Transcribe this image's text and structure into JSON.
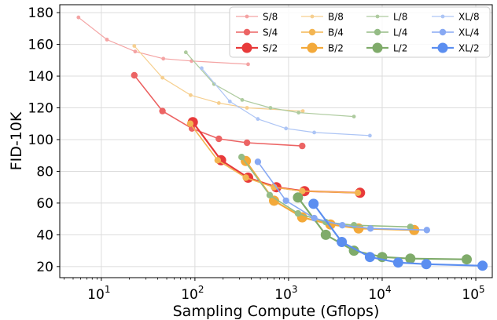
{
  "chart_data": {
    "type": "line",
    "xlabel": "Sampling Compute (Gflops)",
    "ylabel": "FID-10K",
    "xscale": "log",
    "xlim": [
      3.6,
      150000
    ],
    "ylim": [
      13,
      185
    ],
    "xticks": [
      {
        "value": 10,
        "base": "10",
        "exp": "1"
      },
      {
        "value": 100,
        "base": "10",
        "exp": "2"
      },
      {
        "value": 1000,
        "base": "10",
        "exp": "3"
      },
      {
        "value": 10000,
        "base": "10",
        "exp": "4"
      },
      {
        "value": 100000,
        "base": "10",
        "exp": "5"
      }
    ],
    "yticks": [
      20,
      40,
      60,
      80,
      100,
      120,
      140,
      160,
      180
    ],
    "grid": true,
    "legend": {
      "placement": "top-right",
      "columns": 4
    },
    "series": [
      {
        "name": "S/8",
        "color": "#f4a3a3",
        "size": 1,
        "points": [
          [
            5.7,
            177
          ],
          [
            11.5,
            163
          ],
          [
            23,
            155.5
          ],
          [
            46,
            151
          ],
          [
            92,
            149.5
          ],
          [
            370,
            147.5
          ]
        ]
      },
      {
        "name": "S/4",
        "color": "#ec6464",
        "size": 2,
        "points": [
          [
            22.5,
            140.5
          ],
          [
            45,
            118
          ],
          [
            93,
            107
          ],
          [
            180,
            100.5
          ],
          [
            360,
            98
          ],
          [
            1400,
            96
          ]
        ]
      },
      {
        "name": "S/2",
        "color": "#e83a3a",
        "size": 3,
        "points": [
          [
            95,
            111
          ],
          [
            190,
            87
          ],
          [
            370,
            76
          ],
          [
            740,
            70
          ],
          [
            1480,
            67.5
          ],
          [
            5800,
            66.5
          ]
        ]
      },
      {
        "name": "B/8",
        "color": "#f6cf8f",
        "size": 1,
        "points": [
          [
            22.5,
            159
          ],
          [
            45,
            139
          ],
          [
            90,
            128
          ],
          [
            180,
            123
          ],
          [
            360,
            120
          ],
          [
            1420,
            118
          ]
        ]
      },
      {
        "name": "B/4",
        "color": "#f3b552",
        "size": 2,
        "points": [
          [
            89,
            110
          ],
          [
            175,
            87
          ],
          [
            350,
            76
          ],
          [
            700,
            70
          ],
          [
            1400,
            67.5
          ],
          [
            5500,
            66.5
          ]
        ]
      },
      {
        "name": "B/2",
        "color": "#f3a93a",
        "size": 3,
        "points": [
          [
            350,
            86.5
          ],
          [
            700,
            61.5
          ],
          [
            1400,
            51
          ],
          [
            2800,
            46.5
          ],
          [
            5600,
            44
          ],
          [
            22000,
            43
          ]
        ]
      },
      {
        "name": "L/8",
        "color": "#aecb9f",
        "size": 1,
        "points": [
          [
            80,
            155
          ],
          [
            160,
            135
          ],
          [
            320,
            125
          ],
          [
            640,
            120
          ],
          [
            1280,
            117
          ],
          [
            5000,
            114.5
          ]
        ]
      },
      {
        "name": "L/4",
        "color": "#95bc86",
        "size": 2,
        "points": [
          [
            315,
            89
          ],
          [
            630,
            65
          ],
          [
            1260,
            53.5
          ],
          [
            2500,
            48
          ],
          [
            5000,
            46
          ],
          [
            20000,
            45
          ]
        ]
      },
      {
        "name": "L/2",
        "color": "#7fab6a",
        "size": 3,
        "points": [
          [
            1260,
            63.5
          ],
          [
            2500,
            40
          ],
          [
            5000,
            30
          ],
          [
            10000,
            26
          ],
          [
            20000,
            25
          ],
          [
            80000,
            24.5
          ]
        ]
      },
      {
        "name": "XL/8",
        "color": "#adc5f5",
        "size": 1,
        "points": [
          [
            118,
            145
          ],
          [
            236,
            124
          ],
          [
            470,
            113
          ],
          [
            940,
            107
          ],
          [
            1880,
            104.5
          ],
          [
            7400,
            102.5
          ]
        ]
      },
      {
        "name": "XL/4",
        "color": "#88a9f3",
        "size": 2,
        "points": [
          [
            470,
            86
          ],
          [
            940,
            61.5
          ],
          [
            1880,
            50.5
          ],
          [
            3750,
            46
          ],
          [
            7500,
            44
          ],
          [
            30000,
            43
          ]
        ]
      },
      {
        "name": "XL/2",
        "color": "#5b8ef0",
        "size": 3,
        "points": [
          [
            1850,
            59.5
          ],
          [
            3700,
            35.5
          ],
          [
            7400,
            26
          ],
          [
            14800,
            22.5
          ],
          [
            29600,
            21.5
          ],
          [
            118000,
            20.5
          ]
        ]
      }
    ]
  }
}
